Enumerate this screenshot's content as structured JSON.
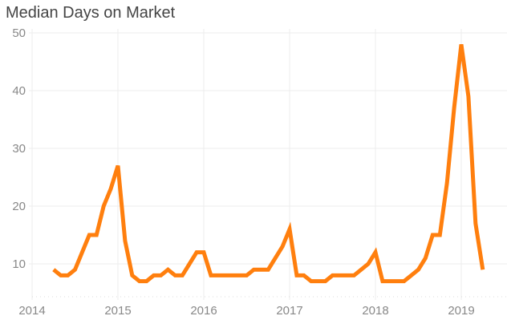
{
  "title": "Median Days on Market",
  "colors": {
    "line": "#ff7f0e",
    "grid": "#ececec",
    "axis_text": "#888888",
    "title": "#444444"
  },
  "chart_data": {
    "type": "line",
    "title": "Median Days on Market",
    "xlabel": "",
    "ylabel": "",
    "x_ticks": [
      "2014",
      "2015",
      "2016",
      "2017",
      "2018",
      "2019"
    ],
    "y_ticks": [
      10,
      20,
      30,
      40,
      50
    ],
    "ylim": [
      5,
      50
    ],
    "grid": true,
    "legend": null,
    "series": [
      {
        "name": "Median Days on Market",
        "x": [
          "2014-04",
          "2014-05",
          "2014-06",
          "2014-07",
          "2014-08",
          "2014-09",
          "2014-10",
          "2014-11",
          "2014-12",
          "2015-01",
          "2015-02",
          "2015-03",
          "2015-04",
          "2015-05",
          "2015-06",
          "2015-07",
          "2015-08",
          "2015-09",
          "2015-10",
          "2015-11",
          "2015-12",
          "2016-01",
          "2016-02",
          "2016-03",
          "2016-04",
          "2016-05",
          "2016-06",
          "2016-07",
          "2016-08",
          "2016-09",
          "2016-10",
          "2016-11",
          "2016-12",
          "2017-01",
          "2017-02",
          "2017-03",
          "2017-04",
          "2017-05",
          "2017-06",
          "2017-07",
          "2017-08",
          "2017-09",
          "2017-10",
          "2017-11",
          "2017-12",
          "2018-01",
          "2018-02",
          "2018-03",
          "2018-04",
          "2018-05",
          "2018-06",
          "2018-07",
          "2018-08",
          "2018-09",
          "2018-10",
          "2018-11",
          "2018-12",
          "2019-01",
          "2019-02",
          "2019-03",
          "2019-04"
        ],
        "values": [
          9,
          8,
          8,
          9,
          12,
          15,
          15,
          20,
          23,
          27,
          14,
          8,
          7,
          7,
          8,
          8,
          9,
          8,
          8,
          10,
          12,
          12,
          8,
          8,
          8,
          8,
          8,
          8,
          9,
          9,
          9,
          11,
          13,
          16,
          8,
          8,
          7,
          7,
          7,
          8,
          8,
          8,
          8,
          9,
          10,
          12,
          7,
          7,
          7,
          7,
          8,
          9,
          11,
          15,
          15,
          24,
          37,
          48,
          39,
          17,
          9
        ]
      }
    ]
  }
}
